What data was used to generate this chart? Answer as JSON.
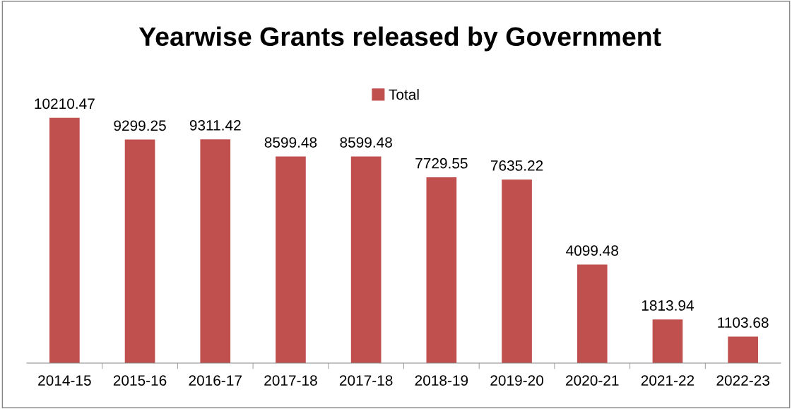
{
  "chart_data": {
    "type": "bar",
    "title": "Yearwise Grants released by Government",
    "categories": [
      "2014-15",
      "2015-16",
      "2016-17",
      "2017-18",
      "2017-18",
      "2018-19",
      "2019-20",
      "2020-21",
      "2021-22",
      "2022-23"
    ],
    "series": [
      {
        "name": "Total",
        "color": "#c0504d",
        "values": [
          10210.47,
          9299.25,
          9311.42,
          8599.48,
          8599.48,
          7729.55,
          7635.22,
          4099.48,
          1813.94,
          1103.68
        ]
      }
    ],
    "data_labels": true,
    "legend": "top",
    "grid": false
  }
}
